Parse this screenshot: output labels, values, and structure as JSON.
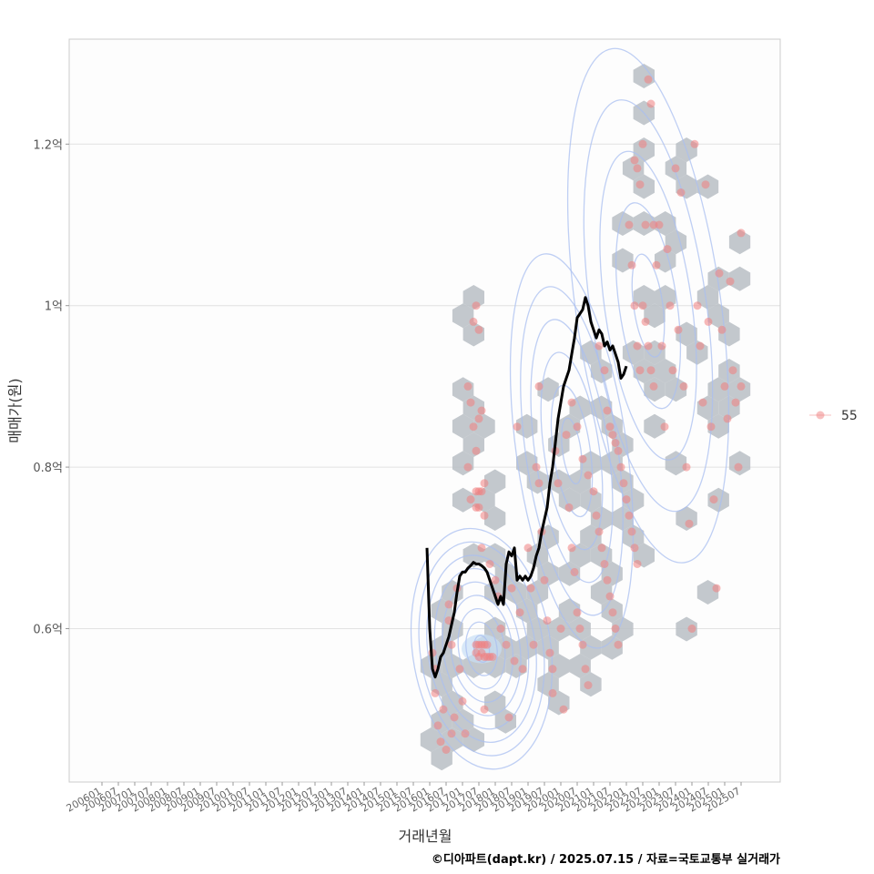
{
  "chart_data": {
    "type": "scatter",
    "title": "",
    "xlabel": "거래년월",
    "ylabel": "매매가(원)",
    "caption": "©디아파트(dapt.kr) / 2025.07.15 / 자료=국토교통부 실거래가",
    "x_ticks": [
      "200601",
      "200607",
      "200701",
      "200707",
      "200801",
      "200807",
      "200901",
      "200907",
      "201001",
      "201007",
      "201101",
      "201107",
      "201201",
      "201207",
      "201301",
      "201307",
      "201401",
      "201407",
      "201501",
      "201507",
      "201601",
      "201607",
      "201701",
      "201707",
      "201801",
      "201807",
      "201901",
      "201907",
      "202001",
      "202007",
      "202101",
      "202107",
      "202201",
      "202207",
      "202301",
      "202307",
      "202401",
      "202407",
      "202501",
      "202507"
    ],
    "x_range": [
      "2006-01",
      "2025-07"
    ],
    "y_ticks": [
      {
        "value": 0.6,
        "label": "0.6억"
      },
      {
        "value": 0.8,
        "label": "0.8억"
      },
      {
        "value": 1.0,
        "label": "1억"
      },
      {
        "value": 1.2,
        "label": "1.2억"
      }
    ],
    "y_unit": "억",
    "ylim": [
      0.41,
      1.33
    ],
    "grid": "horizontal",
    "legend": {
      "position": "right",
      "entries": [
        {
          "label": "55",
          "color": "#f08080"
        }
      ]
    },
    "colors": {
      "points": "#f08080",
      "hex": "#b8bec4",
      "contour": "#a9bff0",
      "trend": "#000000",
      "density_center": "#c8def5"
    },
    "series": [
      {
        "kind": "points",
        "legend_key": "55",
        "points": [
          [
            "2016-02",
            0.57
          ],
          [
            "2016-03",
            0.55
          ],
          [
            "2016-03",
            0.52
          ],
          [
            "2016-04",
            0.48
          ],
          [
            "2016-05",
            0.46
          ],
          [
            "2016-06",
            0.5
          ],
          [
            "2016-07",
            0.45
          ],
          [
            "2016-08",
            0.63
          ],
          [
            "2016-08",
            0.61
          ],
          [
            "2016-09",
            0.58
          ],
          [
            "2016-09",
            0.47
          ],
          [
            "2016-10",
            0.49
          ],
          [
            "2016-11",
            0.65
          ],
          [
            "2016-12",
            0.55
          ],
          [
            "2017-01",
            0.51
          ],
          [
            "2017-02",
            0.47
          ],
          [
            "2017-03",
            0.9
          ],
          [
            "2017-03",
            0.8
          ],
          [
            "2017-04",
            0.88
          ],
          [
            "2017-04",
            0.76
          ],
          [
            "2017-05",
            0.98
          ],
          [
            "2017-05",
            0.85
          ],
          [
            "2017-06",
            1.0
          ],
          [
            "2017-06",
            0.82
          ],
          [
            "2017-06",
            0.77
          ],
          [
            "2017-06",
            0.75
          ],
          [
            "2017-07",
            0.97
          ],
          [
            "2017-07",
            0.86
          ],
          [
            "2017-07",
            0.77
          ],
          [
            "2017-07",
            0.75
          ],
          [
            "2017-08",
            0.87
          ],
          [
            "2017-08",
            0.77
          ],
          [
            "2017-08",
            0.7
          ],
          [
            "2017-09",
            0.78
          ],
          [
            "2017-09",
            0.74
          ],
          [
            "2017-06",
            0.58
          ],
          [
            "2017-06",
            0.57
          ],
          [
            "2017-07",
            0.58
          ],
          [
            "2017-07",
            0.565
          ],
          [
            "2017-08",
            0.58
          ],
          [
            "2017-08",
            0.57
          ],
          [
            "2017-09",
            0.58
          ],
          [
            "2017-09",
            0.565
          ],
          [
            "2017-10",
            0.58
          ],
          [
            "2017-10",
            0.565
          ],
          [
            "2017-11",
            0.565
          ],
          [
            "2017-12",
            0.565
          ],
          [
            "2017-09",
            0.5
          ],
          [
            "2017-11",
            0.68
          ],
          [
            "2018-01",
            0.66
          ],
          [
            "2018-02",
            0.64
          ],
          [
            "2018-03",
            0.6
          ],
          [
            "2018-05",
            0.58
          ],
          [
            "2018-06",
            0.49
          ],
          [
            "2018-07",
            0.65
          ],
          [
            "2018-08",
            0.56
          ],
          [
            "2018-09",
            0.85
          ],
          [
            "2018-10",
            0.62
          ],
          [
            "2018-11",
            0.55
          ],
          [
            "2019-01",
            0.7
          ],
          [
            "2019-02",
            0.65
          ],
          [
            "2019-03",
            0.58
          ],
          [
            "2019-04",
            0.8
          ],
          [
            "2019-05",
            0.9
          ],
          [
            "2019-05",
            0.78
          ],
          [
            "2019-06",
            0.72
          ],
          [
            "2019-07",
            0.66
          ],
          [
            "2019-08",
            0.61
          ],
          [
            "2019-09",
            0.57
          ],
          [
            "2019-10",
            0.55
          ],
          [
            "2019-10",
            0.52
          ],
          [
            "2019-11",
            0.82
          ],
          [
            "2019-12",
            0.78
          ],
          [
            "2020-01",
            0.6
          ],
          [
            "2020-02",
            0.5
          ],
          [
            "2020-03",
            0.84
          ],
          [
            "2020-04",
            0.75
          ],
          [
            "2020-05",
            0.7
          ],
          [
            "2020-06",
            0.67
          ],
          [
            "2020-07",
            0.62
          ],
          [
            "2020-08",
            0.6
          ],
          [
            "2020-09",
            0.58
          ],
          [
            "2020-10",
            0.55
          ],
          [
            "2020-11",
            0.53
          ],
          [
            "2020-05",
            0.88
          ],
          [
            "2020-07",
            0.85
          ],
          [
            "2020-09",
            0.81
          ],
          [
            "2020-11",
            0.79
          ],
          [
            "2021-01",
            0.77
          ],
          [
            "2021-02",
            0.74
          ],
          [
            "2021-03",
            0.72
          ],
          [
            "2021-04",
            0.7
          ],
          [
            "2021-05",
            0.68
          ],
          [
            "2021-06",
            0.66
          ],
          [
            "2021-07",
            0.64
          ],
          [
            "2021-08",
            0.62
          ],
          [
            "2021-09",
            0.6
          ],
          [
            "2021-10",
            0.58
          ],
          [
            "2021-03",
            0.95
          ],
          [
            "2021-05",
            0.92
          ],
          [
            "2021-06",
            0.87
          ],
          [
            "2021-07",
            0.85
          ],
          [
            "2021-08",
            0.84
          ],
          [
            "2021-09",
            0.83
          ],
          [
            "2021-10",
            0.82
          ],
          [
            "2021-11",
            0.8
          ],
          [
            "2021-12",
            0.78
          ],
          [
            "2022-01",
            0.76
          ],
          [
            "2022-02",
            0.74
          ],
          [
            "2022-03",
            0.72
          ],
          [
            "2022-04",
            0.7
          ],
          [
            "2022-05",
            0.68
          ],
          [
            "2022-02",
            1.1
          ],
          [
            "2022-03",
            1.05
          ],
          [
            "2022-04",
            1.18
          ],
          [
            "2022-04",
            1.0
          ],
          [
            "2022-05",
            1.17
          ],
          [
            "2022-05",
            0.95
          ],
          [
            "2022-06",
            1.15
          ],
          [
            "2022-06",
            0.92
          ],
          [
            "2022-07",
            1.2
          ],
          [
            "2022-07",
            1.0
          ],
          [
            "2022-08",
            1.1
          ],
          [
            "2022-08",
            0.98
          ],
          [
            "2022-09",
            1.28
          ],
          [
            "2022-09",
            0.95
          ],
          [
            "2022-10",
            1.25
          ],
          [
            "2022-10",
            0.92
          ],
          [
            "2022-11",
            1.1
          ],
          [
            "2022-11",
            0.9
          ],
          [
            "2022-12",
            1.05
          ],
          [
            "2023-01",
            1.1
          ],
          [
            "2023-02",
            0.95
          ],
          [
            "2023-03",
            0.85
          ],
          [
            "2023-04",
            1.07
          ],
          [
            "2023-05",
            1.0
          ],
          [
            "2023-06",
            0.92
          ],
          [
            "2023-07",
            1.17
          ],
          [
            "2023-08",
            0.97
          ],
          [
            "2023-09",
            1.14
          ],
          [
            "2023-10",
            0.9
          ],
          [
            "2023-11",
            0.8
          ],
          [
            "2023-12",
            0.73
          ],
          [
            "2024-01",
            0.6
          ],
          [
            "2024-02",
            1.2
          ],
          [
            "2024-03",
            1.0
          ],
          [
            "2024-04",
            0.95
          ],
          [
            "2024-05",
            0.88
          ],
          [
            "2024-06",
            1.15
          ],
          [
            "2024-07",
            0.98
          ],
          [
            "2024-08",
            0.85
          ],
          [
            "2024-09",
            0.76
          ],
          [
            "2024-10",
            0.65
          ],
          [
            "2024-11",
            1.04
          ],
          [
            "2024-12",
            0.97
          ],
          [
            "2025-01",
            0.9
          ],
          [
            "2025-02",
            0.86
          ],
          [
            "2025-03",
            1.03
          ],
          [
            "2025-04",
            0.92
          ],
          [
            "2025-05",
            0.88
          ],
          [
            "2025-06",
            0.8
          ],
          [
            "2025-07",
            1.09
          ],
          [
            "2025-07",
            0.9
          ]
        ]
      },
      {
        "kind": "line",
        "legend_key": "",
        "description": "moving average trend",
        "points": [
          [
            "2015-12",
            0.7
          ],
          [
            "2016-01",
            0.6
          ],
          [
            "2016-02",
            0.55
          ],
          [
            "2016-03",
            0.54
          ],
          [
            "2016-04",
            0.55
          ],
          [
            "2016-05",
            0.565
          ],
          [
            "2016-06",
            0.57
          ],
          [
            "2016-07",
            0.58
          ],
          [
            "2016-08",
            0.59
          ],
          [
            "2016-09",
            0.605
          ],
          [
            "2016-10",
            0.62
          ],
          [
            "2016-11",
            0.645
          ],
          [
            "2016-12",
            0.665
          ],
          [
            "2017-01",
            0.67
          ],
          [
            "2017-02",
            0.67
          ],
          [
            "2017-03",
            0.675
          ],
          [
            "2017-04",
            0.678
          ],
          [
            "2017-05",
            0.682
          ],
          [
            "2017-06",
            0.68
          ],
          [
            "2017-07",
            0.68
          ],
          [
            "2017-08",
            0.678
          ],
          [
            "2017-09",
            0.675
          ],
          [
            "2017-10",
            0.67
          ],
          [
            "2017-11",
            0.66
          ],
          [
            "2017-12",
            0.65
          ],
          [
            "2018-01",
            0.64
          ],
          [
            "2018-02",
            0.63
          ],
          [
            "2018-03",
            0.64
          ],
          [
            "2018-04",
            0.63
          ],
          [
            "2018-05",
            0.68
          ],
          [
            "2018-06",
            0.695
          ],
          [
            "2018-07",
            0.69
          ],
          [
            "2018-08",
            0.7
          ],
          [
            "2018-09",
            0.66
          ],
          [
            "2018-10",
            0.665
          ],
          [
            "2018-11",
            0.66
          ],
          [
            "2018-12",
            0.665
          ],
          [
            "2019-01",
            0.66
          ],
          [
            "2019-02",
            0.665
          ],
          [
            "2019-03",
            0.675
          ],
          [
            "2019-04",
            0.69
          ],
          [
            "2019-05",
            0.7
          ],
          [
            "2019-06",
            0.72
          ],
          [
            "2019-07",
            0.735
          ],
          [
            "2019-08",
            0.75
          ],
          [
            "2019-09",
            0.78
          ],
          [
            "2019-10",
            0.8
          ],
          [
            "2019-11",
            0.83
          ],
          [
            "2019-12",
            0.86
          ],
          [
            "2020-01",
            0.88
          ],
          [
            "2020-02",
            0.9
          ],
          [
            "2020-03",
            0.91
          ],
          [
            "2020-04",
            0.92
          ],
          [
            "2020-05",
            0.94
          ],
          [
            "2020-06",
            0.96
          ],
          [
            "2020-07",
            0.985
          ],
          [
            "2020-08",
            0.99
          ],
          [
            "2020-09",
            0.995
          ],
          [
            "2020-10",
            1.01
          ],
          [
            "2020-11",
            1.0
          ],
          [
            "2020-12",
            0.98
          ],
          [
            "2021-01",
            0.97
          ],
          [
            "2021-02",
            0.96
          ],
          [
            "2021-03",
            0.97
          ],
          [
            "2021-04",
            0.965
          ],
          [
            "2021-05",
            0.95
          ],
          [
            "2021-06",
            0.955
          ],
          [
            "2021-07",
            0.945
          ],
          [
            "2021-08",
            0.95
          ],
          [
            "2021-09",
            0.94
          ],
          [
            "2021-10",
            0.93
          ],
          [
            "2021-11",
            0.91
          ],
          [
            "2021-12",
            0.915
          ],
          [
            "2022-01",
            0.925
          ]
        ]
      }
    ]
  }
}
